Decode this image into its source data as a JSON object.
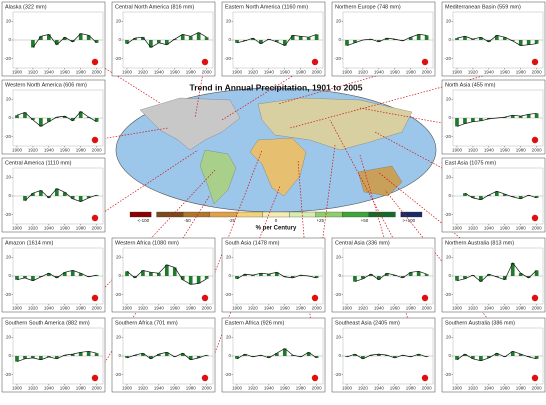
{
  "title": "Trend in Annual Precipitation, 1901 to 2005",
  "legend": {
    "title": "% per Century",
    "colors": [
      "#8b0000",
      "#7a4a1a",
      "#b0762a",
      "#e0a04a",
      "#f2d27a",
      "#f7ebb0",
      "#d8ecb0",
      "#8fce6a",
      "#3fa53a",
      "#176b2a",
      "#1a2a6a"
    ],
    "labels": [
      "<-100",
      "-50",
      "-25",
      "0",
      "+25",
      "+50",
      ">+100"
    ]
  },
  "chart_data": [
    {
      "type": "bar",
      "title": "Alaska (322 mm)",
      "x": [
        1900,
        1910,
        1920,
        1930,
        1940,
        1950,
        1960,
        1970,
        1980,
        1990,
        2000
      ],
      "values": [
        null,
        null,
        -8,
        4,
        6,
        -5,
        3,
        -2,
        7,
        5,
        -3
      ]
    },
    {
      "type": "bar",
      "title": "Central North America (816 mm)",
      "x": [
        1900,
        1910,
        1920,
        1930,
        1940,
        1950,
        1960,
        1970,
        1980,
        1990,
        2000
      ],
      "values": [
        -4,
        2,
        3,
        -8,
        -3,
        -5,
        1,
        6,
        4,
        8,
        3
      ]
    },
    {
      "type": "bar",
      "title": "Eastern North America (1160 mm)",
      "x": [
        1900,
        1910,
        1920,
        1930,
        1940,
        1950,
        1960,
        1970,
        1980,
        1990,
        2000
      ],
      "values": [
        -3,
        -1,
        2,
        -4,
        1,
        -2,
        -6,
        5,
        4,
        3,
        6
      ]
    },
    {
      "type": "bar",
      "title": "Northern Europe (748 mm)",
      "x": [
        1900,
        1910,
        1920,
        1930,
        1940,
        1950,
        1960,
        1970,
        1980,
        1990,
        2000
      ],
      "values": [
        -6,
        -3,
        0,
        1,
        -2,
        2,
        1,
        -1,
        3,
        6,
        5
      ]
    },
    {
      "type": "bar",
      "title": "Mediterranean Basin (559 mm)",
      "x": [
        1900,
        1910,
        1920,
        1930,
        1940,
        1950,
        1960,
        1970,
        1980,
        1990,
        2000
      ],
      "values": [
        2,
        4,
        1,
        3,
        -2,
        5,
        3,
        -1,
        -6,
        -5,
        -4
      ]
    },
    {
      "type": "bar",
      "title": "Western North America (606 mm)",
      "x": [
        1900,
        1910,
        1920,
        1930,
        1940,
        1950,
        1960,
        1970,
        1980,
        1990,
        2000
      ],
      "values": [
        3,
        6,
        -2,
        -9,
        -4,
        1,
        2,
        -3,
        7,
        1,
        -4
      ]
    },
    {
      "type": "bar",
      "title": "Central America (1110 mm)",
      "x": [
        1900,
        1910,
        1920,
        1930,
        1940,
        1950,
        1960,
        1970,
        1980,
        1990,
        2000
      ],
      "values": [
        null,
        -5,
        3,
        6,
        -2,
        8,
        4,
        -3,
        -6,
        -2,
        1
      ]
    },
    {
      "type": "bar",
      "title": "North Asia (455 mm)",
      "x": [
        1900,
        1910,
        1920,
        1930,
        1940,
        1950,
        1960,
        1970,
        1980,
        1990,
        2000
      ],
      "values": [
        -9,
        -6,
        -4,
        -3,
        -1,
        0,
        1,
        3,
        2,
        4,
        5
      ]
    },
    {
      "type": "bar",
      "title": "East Asia (1075 mm)",
      "x": [
        1900,
        1910,
        1920,
        1930,
        1940,
        1950,
        1960,
        1970,
        1980,
        1990,
        2000
      ],
      "values": [
        null,
        3,
        -2,
        -4,
        1,
        5,
        2,
        -1,
        -3,
        1,
        -2
      ]
    },
    {
      "type": "bar",
      "title": "Amazon (1614 mm)",
      "x": [
        1900,
        1910,
        1920,
        1930,
        1940,
        1950,
        1960,
        1970,
        1980,
        1990,
        2000
      ],
      "values": [
        -4,
        -2,
        -5,
        -1,
        3,
        -2,
        4,
        6,
        3,
        -1,
        1
      ]
    },
    {
      "type": "bar",
      "title": "Western Africa (1080 mm)",
      "x": [
        1900,
        1910,
        1920,
        1930,
        1940,
        1950,
        1960,
        1970,
        1980,
        1990,
        2000
      ],
      "values": [
        5,
        -2,
        6,
        4,
        3,
        12,
        9,
        -4,
        -9,
        -8,
        -3
      ]
    },
    {
      "type": "bar",
      "title": "South Asia (1478 mm)",
      "x": [
        1900,
        1910,
        1920,
        1930,
        1940,
        1950,
        1960,
        1970,
        1980,
        1990,
        2000
      ],
      "values": [
        -3,
        2,
        1,
        3,
        2,
        4,
        -1,
        -2,
        1,
        0,
        -2
      ]
    },
    {
      "type": "bar",
      "title": "Central Asia (336 mm)",
      "x": [
        1900,
        1910,
        1920,
        1930,
        1940,
        1950,
        1960,
        1970,
        1980,
        1990,
        2000
      ],
      "values": [
        null,
        -6,
        -3,
        2,
        -4,
        3,
        1,
        -2,
        4,
        5,
        2
      ]
    },
    {
      "type": "bar",
      "title": "Northern Australia (813 mm)",
      "x": [
        1900,
        1910,
        1920,
        1930,
        1940,
        1950,
        1960,
        1970,
        1980,
        1990,
        2000
      ],
      "values": [
        -5,
        -3,
        1,
        -6,
        2,
        -1,
        -4,
        14,
        3,
        -2,
        6
      ]
    },
    {
      "type": "bar",
      "title": "Southern South America (882 mm)",
      "x": [
        1900,
        1910,
        1920,
        1930,
        1940,
        1950,
        1960,
        1970,
        1980,
        1990,
        2000
      ],
      "values": [
        -6,
        -3,
        -2,
        -4,
        -1,
        -3,
        1,
        2,
        4,
        5,
        3
      ]
    },
    {
      "type": "bar",
      "title": "Southern Africa (701 mm)",
      "x": [
        1900,
        1910,
        1920,
        1930,
        1940,
        1950,
        1960,
        1970,
        1980,
        1990,
        2000
      ],
      "values": [
        -2,
        1,
        3,
        -3,
        2,
        4,
        -1,
        3,
        -4,
        -2,
        1
      ]
    },
    {
      "type": "bar",
      "title": "Eastern Africa (926 mm)",
      "x": [
        1900,
        1910,
        1920,
        1930,
        1940,
        1950,
        1960,
        1970,
        1980,
        1990,
        2000
      ],
      "values": [
        -3,
        2,
        -1,
        1,
        -2,
        3,
        8,
        1,
        -1,
        4,
        -2
      ]
    },
    {
      "type": "bar",
      "title": "Southeast Asia (2405 mm)",
      "x": [
        1900,
        1910,
        1920,
        1930,
        1940,
        1950,
        1960,
        1970,
        1980,
        1990,
        2000
      ],
      "values": [
        -1,
        2,
        -3,
        1,
        2,
        1,
        -2,
        1,
        -1,
        2,
        -1
      ]
    },
    {
      "type": "bar",
      "title": "Southern Australia (386 mm)",
      "x": [
        1900,
        1910,
        1920,
        1930,
        1940,
        1950,
        1960,
        1970,
        1980,
        1990,
        2000
      ],
      "values": [
        -4,
        2,
        -3,
        -5,
        -2,
        3,
        -1,
        5,
        2,
        -1,
        -3
      ]
    }
  ],
  "panel_axes": {
    "xlim": [
      1895,
      2008
    ],
    "xticks": [
      1900,
      1920,
      1940,
      1960,
      1980,
      2000
    ],
    "ylim": [
      -30,
      30
    ],
    "yticks": [
      -20,
      0,
      20
    ]
  }
}
